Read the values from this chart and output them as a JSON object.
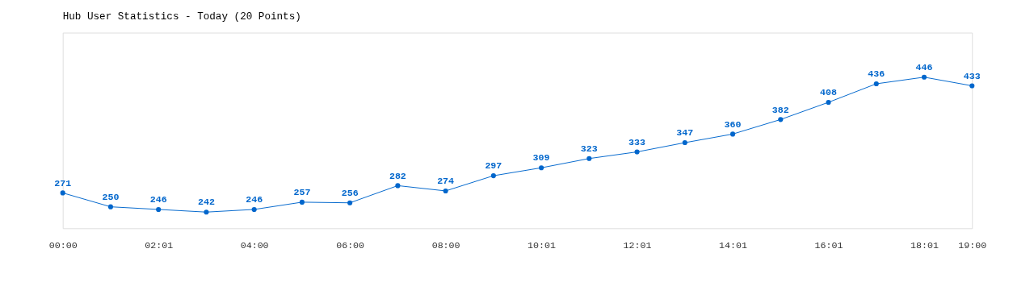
{
  "chart_data": {
    "type": "line",
    "title": "Hub User Statistics - Today (20 Points)",
    "categories": [
      "00:00",
      null,
      "02:01",
      null,
      "04:00",
      null,
      "06:00",
      null,
      "08:00",
      null,
      "10:01",
      null,
      "12:01",
      null,
      "14:01",
      null,
      "16:01",
      null,
      "18:01",
      "19:00"
    ],
    "series": [
      {
        "color": "#0066cc",
        "values": [
          271,
          250,
          246,
          242,
          246,
          257,
          256,
          282,
          274,
          297,
          309,
          323,
          333,
          347,
          360,
          382,
          408,
          436,
          446,
          433
        ]
      }
    ],
    "data_labels": true,
    "marker": "circle",
    "line_style": "solid",
    "grid": false
  }
}
